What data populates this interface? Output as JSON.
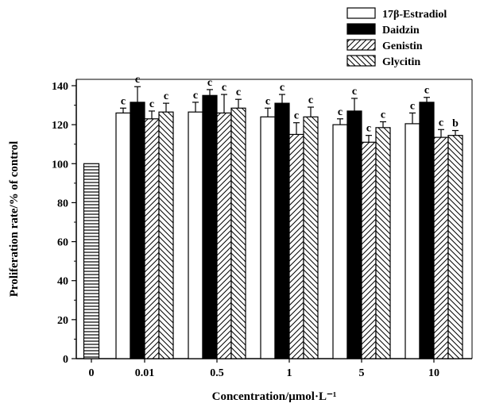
{
  "chart_data": {
    "type": "bar",
    "xlabel": "Concentration/μmol·L⁻¹",
    "ylabel": "Proliferation rate/% of control",
    "ylim": [
      0,
      140
    ],
    "yticks": [
      0,
      20,
      40,
      60,
      80,
      100,
      120,
      140
    ],
    "categories": [
      "0",
      "0.01",
      "0.5",
      "1",
      "5",
      "10"
    ],
    "control": {
      "category": "0",
      "value": 100,
      "pattern": "horizontal-lines"
    },
    "series": [
      {
        "name": "17β-Estradiol",
        "pattern": "open",
        "values": [
          null,
          126,
          126.5,
          124,
          120,
          120.5
        ],
        "errors": [
          null,
          2.5,
          5,
          4.5,
          3,
          5.5
        ],
        "labels": [
          null,
          "c",
          "c",
          "c",
          "c",
          "c"
        ]
      },
      {
        "name": "Daidzin",
        "pattern": "solid",
        "values": [
          null,
          131.5,
          135,
          131,
          127,
          131.5
        ],
        "errors": [
          null,
          8,
          3,
          4.5,
          6.5,
          2.5
        ],
        "labels": [
          null,
          "c",
          "c",
          "c",
          "c",
          "c"
        ]
      },
      {
        "name": "Genistin",
        "pattern": "diagonal-right",
        "values": [
          null,
          123,
          126,
          115,
          111,
          113.5
        ],
        "errors": [
          null,
          4,
          9.5,
          6,
          3.5,
          4
        ],
        "labels": [
          null,
          "c",
          "c",
          "c",
          "c",
          "c"
        ]
      },
      {
        "name": "Glycitin",
        "pattern": "diagonal-left",
        "values": [
          null,
          126.5,
          128.5,
          124,
          118.5,
          114.5
        ],
        "errors": [
          null,
          4.5,
          4.5,
          5,
          3,
          2.5
        ],
        "labels": [
          null,
          "c",
          "c",
          "c",
          "c",
          "b"
        ]
      }
    ],
    "legend_position": "top-right",
    "grid": false
  }
}
